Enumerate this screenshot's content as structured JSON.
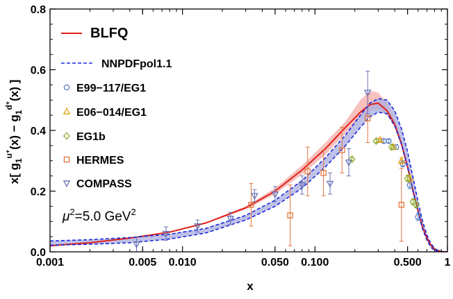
{
  "chart_data": {
    "type": "line",
    "title": "",
    "xlabel": "x",
    "ylabel": "x[ g1u+(x) − g1d+(x) ]",
    "ylabel_parts": {
      "prefix": "x[ g",
      "sub1": "1",
      "sup1": "u",
      "sup1b": "+",
      "mid1": "(x) − g",
      "sub2": "1",
      "sup2": "d",
      "sup2b": "+",
      "suffix": "(x) ]"
    },
    "x_scale": "log",
    "xlim": [
      0.001,
      1
    ],
    "ylim": [
      0.0,
      0.8
    ],
    "x_ticks": [
      {
        "value": 0.001,
        "label": "0.001"
      },
      {
        "value": 0.005,
        "label": "0.005"
      },
      {
        "value": 0.01,
        "label": "0.010"
      },
      {
        "value": 0.05,
        "label": "0.050"
      },
      {
        "value": 0.1,
        "label": "0.100"
      },
      {
        "value": 0.5,
        "label": "0.500"
      },
      {
        "value": 1,
        "label": "1"
      }
    ],
    "y_ticks": [
      {
        "value": 0.0,
        "label": "0.0"
      },
      {
        "value": 0.2,
        "label": "0.2"
      },
      {
        "value": 0.4,
        "label": "0.4"
      },
      {
        "value": 0.6,
        "label": "0.6"
      },
      {
        "value": 0.8,
        "label": "0.8"
      }
    ],
    "annotation": {
      "prefix": "μ",
      "sup": "2",
      "suffix": "=5.0 GeV",
      "sup2": "2"
    },
    "legend_placement": "top-left",
    "series": [
      {
        "name": "BLFQ",
        "kind": "line",
        "color": "#e0201a",
        "x": [
          0.001,
          0.002,
          0.004,
          0.008,
          0.015,
          0.03,
          0.05,
          0.08,
          0.12,
          0.17,
          0.22,
          0.26,
          0.3,
          0.35,
          0.4,
          0.45,
          0.5,
          0.55,
          0.6,
          0.65,
          0.7,
          0.75,
          0.8,
          0.9,
          1.0
        ],
        "y": [
          0.02,
          0.03,
          0.045,
          0.065,
          0.095,
          0.145,
          0.2,
          0.27,
          0.34,
          0.41,
          0.46,
          0.485,
          0.49,
          0.465,
          0.42,
          0.355,
          0.28,
          0.2,
          0.135,
          0.08,
          0.045,
          0.022,
          0.008,
          0.001,
          0.0
        ],
        "band_lower": [
          0.019,
          0.029,
          0.044,
          0.064,
          0.093,
          0.14,
          0.19,
          0.255,
          0.32,
          0.39,
          0.44,
          0.465,
          0.47,
          0.45,
          0.41,
          0.345,
          0.27,
          0.195,
          0.13,
          0.077,
          0.043,
          0.02,
          0.007,
          0.001,
          0.0
        ],
        "band_upper": [
          0.021,
          0.031,
          0.046,
          0.066,
          0.097,
          0.15,
          0.21,
          0.285,
          0.36,
          0.43,
          0.5,
          0.53,
          0.525,
          0.49,
          0.435,
          0.365,
          0.29,
          0.21,
          0.14,
          0.083,
          0.047,
          0.024,
          0.009,
          0.001,
          0.0
        ],
        "band_color": "#f4a7a3"
      },
      {
        "name": "NNPDFpol1.1",
        "kind": "band",
        "color": "#1a2adb",
        "fill": "#a9acdf",
        "x": [
          0.001,
          0.002,
          0.004,
          0.008,
          0.015,
          0.03,
          0.05,
          0.08,
          0.12,
          0.17,
          0.22,
          0.26,
          0.3,
          0.35,
          0.4,
          0.45,
          0.5,
          0.55,
          0.6,
          0.65,
          0.7,
          0.75,
          0.8,
          0.85,
          0.9,
          1.0
        ],
        "lower": [
          0.022,
          0.025,
          0.03,
          0.042,
          0.062,
          0.105,
          0.15,
          0.21,
          0.28,
          0.35,
          0.41,
          0.445,
          0.46,
          0.455,
          0.415,
          0.355,
          0.28,
          0.2,
          0.13,
          0.075,
          0.038,
          0.015,
          0.004,
          0.001,
          0.0,
          0.0
        ],
        "upper": [
          0.036,
          0.04,
          0.047,
          0.058,
          0.077,
          0.12,
          0.17,
          0.235,
          0.31,
          0.385,
          0.45,
          0.49,
          0.505,
          0.5,
          0.465,
          0.405,
          0.33,
          0.245,
          0.165,
          0.1,
          0.055,
          0.027,
          0.012,
          0.004,
          0.001,
          0.0
        ]
      },
      {
        "name": "E99−117/EG1",
        "kind": "points",
        "marker": "circle",
        "color": "#5b7fc6",
        "points": [
          {
            "x": 0.33,
            "y": 0.365,
            "err": 0.006
          },
          {
            "x": 0.36,
            "y": 0.365,
            "err": 0.006
          },
          {
            "x": 0.41,
            "y": 0.345,
            "err": 0.008
          },
          {
            "x": 0.46,
            "y": 0.29,
            "err": 0.01
          },
          {
            "x": 0.52,
            "y": 0.22,
            "err": 0.012
          },
          {
            "x": 0.6,
            "y": 0.115,
            "err": 0.012
          }
        ]
      },
      {
        "name": "E06−014/EG1",
        "kind": "points",
        "marker": "triangle-up",
        "color": "#e8a21a",
        "points": [
          {
            "x": 0.31,
            "y": 0.368,
            "err": 0.006
          },
          {
            "x": 0.39,
            "y": 0.345,
            "err": 0.008
          },
          {
            "x": 0.45,
            "y": 0.3,
            "err": 0.01
          },
          {
            "x": 0.52,
            "y": 0.242,
            "err": 0.012
          }
        ]
      },
      {
        "name": "EG1b",
        "kind": "points",
        "marker": "diamond",
        "color": "#8aad2e",
        "points": [
          {
            "x": 0.19,
            "y": 0.305,
            "err": 0.006
          },
          {
            "x": 0.29,
            "y": 0.365,
            "err": 0.006
          },
          {
            "x": 0.38,
            "y": 0.345,
            "err": 0.008
          },
          {
            "x": 0.5,
            "y": 0.242,
            "err": 0.01
          },
          {
            "x": 0.55,
            "y": 0.165,
            "err": 0.01
          },
          {
            "x": 0.58,
            "y": 0.155,
            "err": 0.01
          }
        ]
      },
      {
        "name": "HERMES",
        "kind": "points",
        "marker": "square",
        "color": "#e2753f",
        "points": [
          {
            "x": 0.033,
            "y": 0.155,
            "err": 0.07
          },
          {
            "x": 0.065,
            "y": 0.12,
            "err": 0.1
          },
          {
            "x": 0.088,
            "y": 0.265,
            "err": 0.08
          },
          {
            "x": 0.116,
            "y": 0.26,
            "err": 0.075
          },
          {
            "x": 0.16,
            "y": 0.335,
            "err": 0.075
          },
          {
            "x": 0.25,
            "y": 0.44,
            "err": 0.08
          },
          {
            "x": 0.45,
            "y": 0.155,
            "err": 0.12
          }
        ]
      },
      {
        "name": "COMPASS",
        "kind": "points",
        "marker": "triangle-down",
        "color": "#6a73b6",
        "points": [
          {
            "x": 0.0045,
            "y": 0.025,
            "err": 0.025
          },
          {
            "x": 0.0075,
            "y": 0.06,
            "err": 0.022
          },
          {
            "x": 0.013,
            "y": 0.085,
            "err": 0.02
          },
          {
            "x": 0.023,
            "y": 0.11,
            "err": 0.02
          },
          {
            "x": 0.035,
            "y": 0.185,
            "err": 0.02
          },
          {
            "x": 0.05,
            "y": 0.19,
            "err": 0.025
          },
          {
            "x": 0.08,
            "y": 0.22,
            "err": 0.03
          },
          {
            "x": 0.13,
            "y": 0.225,
            "err": 0.035
          },
          {
            "x": 0.18,
            "y": 0.295,
            "err": 0.045
          },
          {
            "x": 0.25,
            "y": 0.525,
            "err": 0.07
          }
        ]
      }
    ]
  }
}
